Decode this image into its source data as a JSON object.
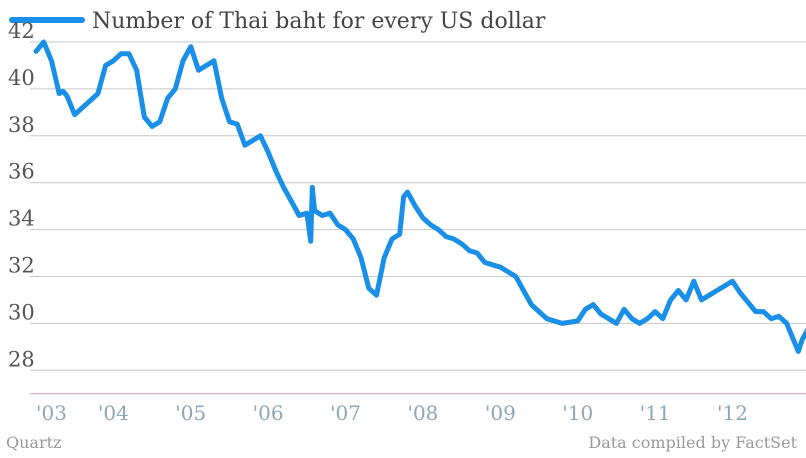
{
  "chart_data": {
    "type": "line",
    "legend": "Number of Thai baht for every US dollar",
    "series": [
      {
        "name": "Number of Thai baht for every US dollar",
        "color": "#1a8fe8",
        "x": [
          2003.0,
          2003.1,
          2003.2,
          2003.3,
          2003.35,
          2003.4,
          2003.5,
          2003.6,
          2003.7,
          2003.8,
          2003.9,
          2004.0,
          2004.1,
          2004.2,
          2004.3,
          2004.4,
          2004.5,
          2004.6,
          2004.7,
          2004.8,
          2004.9,
          2005.0,
          2005.1,
          2005.2,
          2005.3,
          2005.4,
          2005.5,
          2005.6,
          2005.7,
          2005.8,
          2005.9,
          2006.0,
          2006.1,
          2006.2,
          2006.3,
          2006.4,
          2006.5,
          2006.55,
          2006.57,
          2006.6,
          2006.7,
          2006.8,
          2006.9,
          2007.0,
          2007.1,
          2007.2,
          2007.3,
          2007.4,
          2007.5,
          2007.6,
          2007.7,
          2007.75,
          2007.8,
          2007.9,
          2008.0,
          2008.1,
          2008.2,
          2008.3,
          2008.4,
          2008.5,
          2008.6,
          2008.7,
          2008.8,
          2008.9,
          2009.0,
          2009.2,
          2009.4,
          2009.6,
          2009.8,
          2010.0,
          2010.1,
          2010.2,
          2010.3,
          2010.4,
          2010.5,
          2010.6,
          2010.7,
          2010.8,
          2010.9,
          2011.0,
          2011.1,
          2011.2,
          2011.3,
          2011.4,
          2011.5,
          2011.6,
          2011.7,
          2011.8,
          2011.9,
          2012.0,
          2012.1,
          2012.2,
          2012.3,
          2012.4,
          2012.5,
          2012.6,
          2012.7,
          2012.8,
          2012.85,
          2012.9,
          2013.0
        ],
        "y": [
          41.6,
          42.0,
          41.2,
          39.8,
          39.9,
          39.7,
          38.9,
          39.2,
          39.5,
          39.8,
          41.0,
          41.2,
          41.5,
          41.5,
          40.8,
          38.8,
          38.4,
          38.6,
          39.6,
          40.0,
          41.2,
          41.8,
          40.8,
          41.0,
          41.2,
          39.6,
          38.6,
          38.5,
          37.6,
          37.8,
          38.0,
          37.3,
          36.5,
          35.8,
          35.2,
          34.6,
          34.7,
          33.5,
          35.8,
          34.8,
          34.6,
          34.7,
          34.2,
          34.0,
          33.6,
          32.8,
          31.5,
          31.2,
          32.8,
          33.6,
          33.8,
          35.4,
          35.6,
          35.0,
          34.5,
          34.2,
          34.0,
          33.7,
          33.6,
          33.4,
          33.1,
          33.0,
          32.6,
          32.5,
          32.4,
          32.0,
          30.8,
          30.2,
          30.0,
          30.1,
          30.6,
          30.8,
          30.4,
          30.2,
          30.0,
          30.6,
          30.2,
          30.0,
          30.2,
          30.5,
          30.2,
          31.0,
          31.4,
          31.0,
          31.8,
          31.0,
          31.2,
          31.4,
          31.6,
          31.8,
          31.3,
          30.9,
          30.5,
          30.5,
          30.2,
          30.3,
          30.0,
          29.2,
          28.8,
          29.3,
          29.9
        ]
      }
    ],
    "ylim": [
      27,
      42.5
    ],
    "yticks": [
      28,
      30,
      32,
      34,
      36,
      38,
      40,
      42
    ],
    "ytick_labels": [
      "28",
      "30",
      "32",
      "34",
      "36",
      "38",
      "40",
      "42"
    ],
    "xlim": [
      2003.0,
      2012.95
    ],
    "xticks": [
      2003,
      2004,
      2005,
      2006,
      2007,
      2008,
      2009,
      2010,
      2011,
      2012
    ],
    "xtick_labels": [
      "'03",
      "'04",
      "'05",
      "'06",
      "'07",
      "'08",
      "'09",
      "'10",
      "'11",
      "'12"
    ],
    "grid": true,
    "legend_position": "top-left",
    "baseline_color": "#d6a3d6"
  },
  "footer": {
    "source_left": "Quartz",
    "source_right": "Data compiled by FactSet"
  }
}
